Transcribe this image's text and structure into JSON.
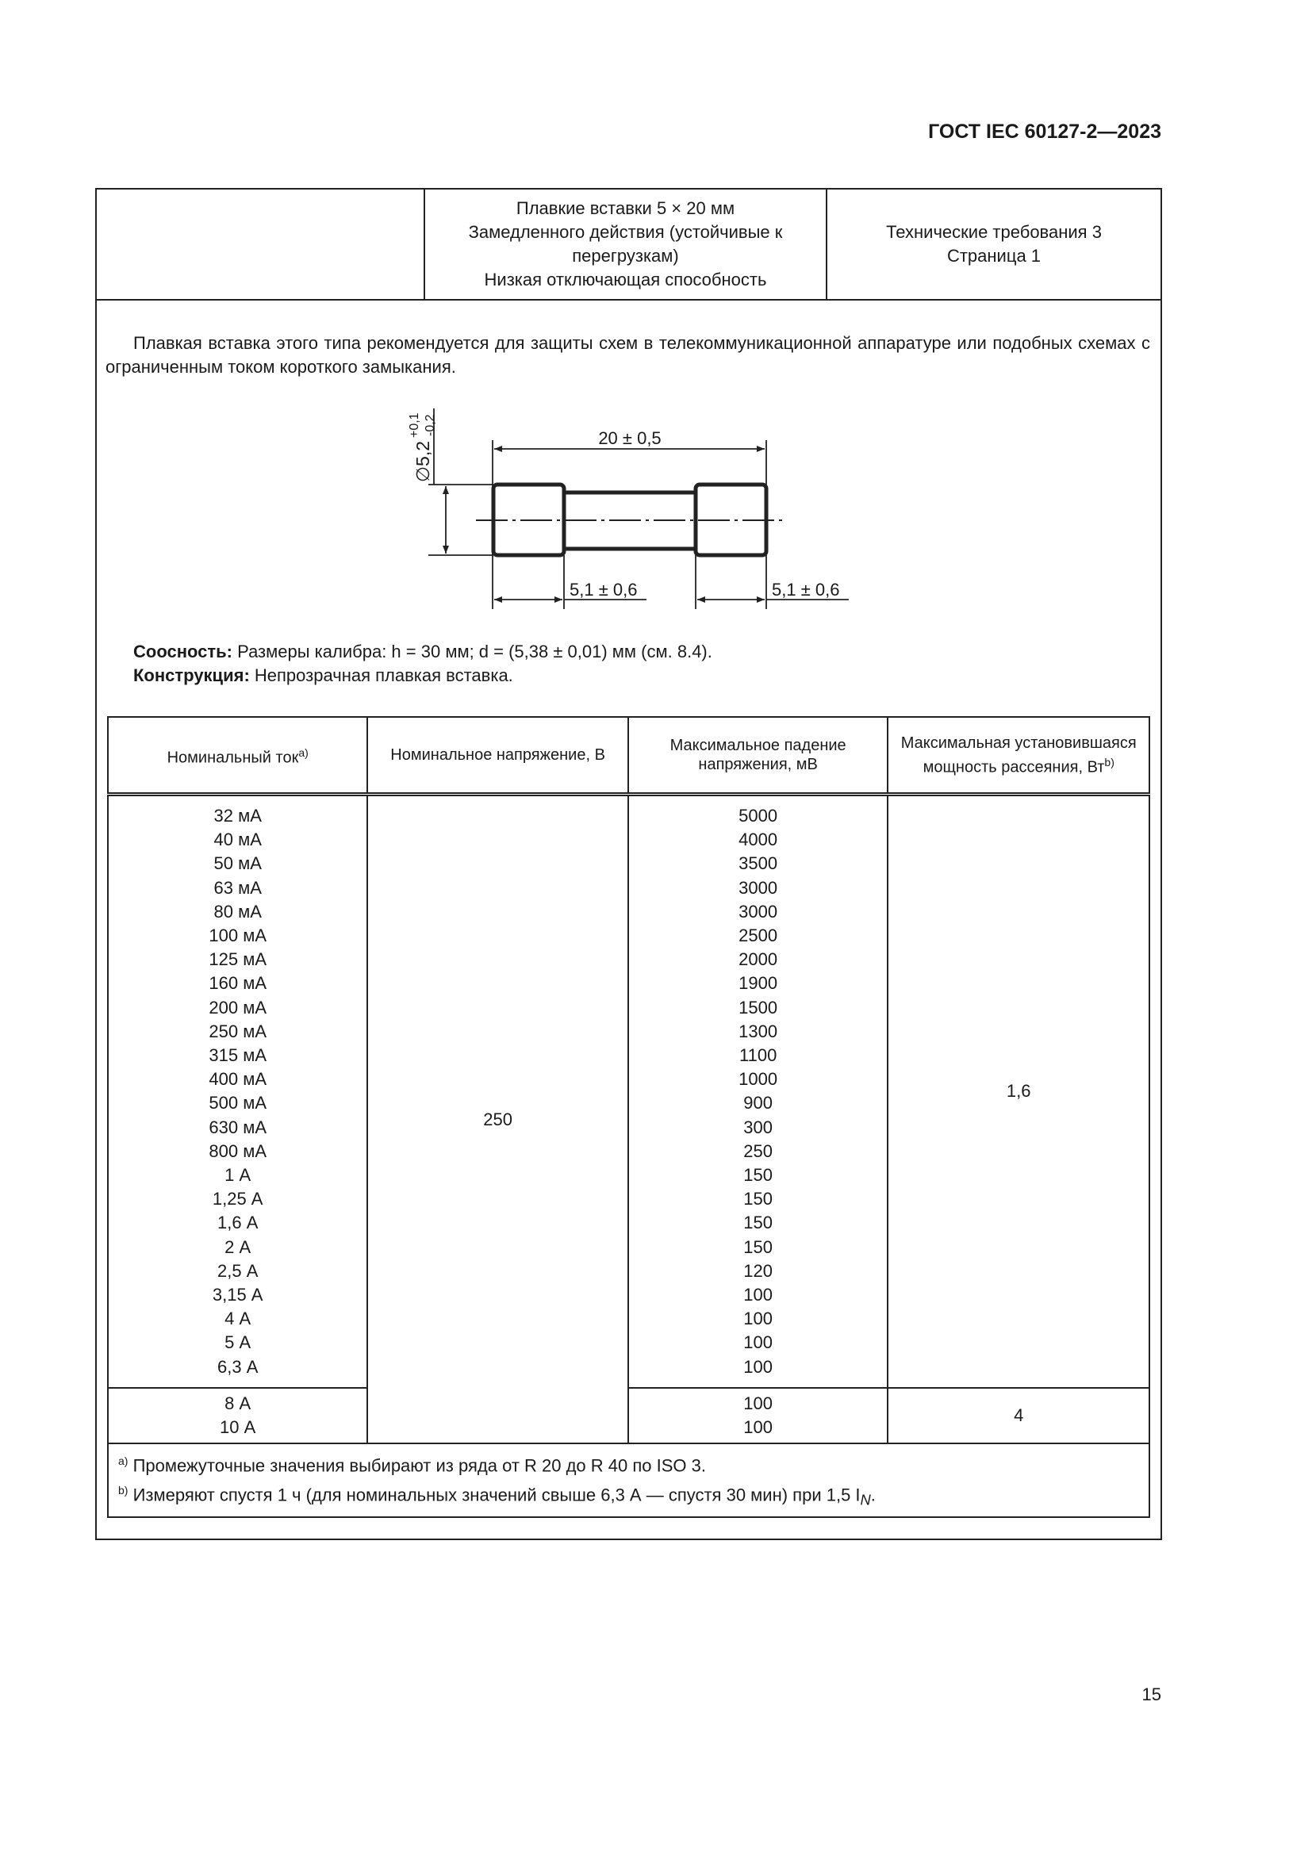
{
  "header": {
    "doc_code": "ГОСТ IEC 60127-2—2023",
    "title_lines": [
      "Плавкие вставки 5 × 20 мм",
      "Замедленного действия (устойчивые к",
      "перегрузкам)",
      "Низкая отключающая способность"
    ],
    "sheet_lines": [
      "Технические требования 3",
      "Страница 1"
    ]
  },
  "intro": "Плавкая вставка этого типа рекомендуется для защиты схем в телекоммуникационной аппаратуре или подобных схемах с ограниченным током короткого замыкания.",
  "drawing": {
    "length": "20 ± 0,5",
    "cap_left": "5,1 ± 0,6",
    "cap_right": "5,1 ± 0,6",
    "diameter": "∅5,2",
    "tol_plus": "+0,1",
    "tol_minus": "-0,2"
  },
  "notes": {
    "coax_label": "Соосность:",
    "coax_text": " Размеры калибра: h = 30 мм; d = (5,38 ± 0,01) мм (см. 8.4).",
    "constr_label": "Конструкция:",
    "constr_text": " Непрозрачная плавкая вставка."
  },
  "table": {
    "headers": [
      "Номинальный ток",
      "Номинальное напряжение, В",
      "Максимальное падение напряжения, мВ",
      "Максимальная установившаяся мощность рассеяния, Вт"
    ],
    "header_sup": {
      "current": "a)",
      "power": "b)"
    },
    "voltage": "250",
    "group1": {
      "currents": [
        "32 мА",
        "40 мА",
        "50 мА",
        "63 мА",
        "80 мА",
        "100 мА",
        "125 мА",
        "160 мА",
        "200 мА",
        "250 мА",
        "315 мА",
        "400 мА",
        "500 мА",
        "630 мА",
        "800 мА",
        "1 А",
        "1,25 А",
        "1,6 А",
        "2 А",
        "2,5 А",
        "3,15 А",
        "4 А",
        "5 А",
        "6,3 А"
      ],
      "drops": [
        "5000",
        "4000",
        "3500",
        "3000",
        "3000",
        "2500",
        "2000",
        "1900",
        "1500",
        "1300",
        "1100",
        "1000",
        "900",
        "300",
        "250",
        "150",
        "150",
        "150",
        "150",
        "120",
        "100",
        "100",
        "100",
        "100"
      ],
      "power": "1,6"
    },
    "group2": {
      "currents": [
        "8 А",
        "10 А"
      ],
      "drops": [
        "100",
        "100"
      ],
      "power": "4"
    },
    "footnotes": [
      {
        "mark": "a)",
        "text": " Промежуточные значения выбирают из ряда от R 20 до R 40 по ISO 3."
      },
      {
        "mark": "b)",
        "text": " Измеряют спустя 1 ч (для номинальных значений свыше 6,3 А — спустя 30 мин) при 1,5 I",
        "sub": "N",
        "end": "."
      }
    ]
  },
  "page_number": "15"
}
